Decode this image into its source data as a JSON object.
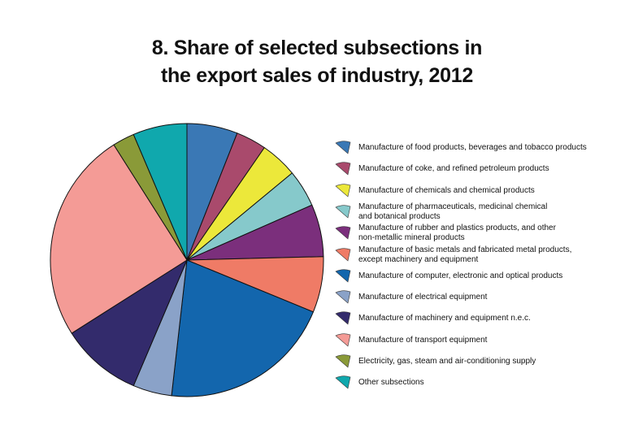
{
  "title_lines": [
    "8. Share of selected subsections in",
    "the export sales of industry, 2012"
  ],
  "chart_data": {
    "type": "pie",
    "title": "8. Share of selected subsections in the export sales of industry, 2012",
    "start": "12 o'clock, clockwise",
    "legend_position": "right",
    "slices": [
      {
        "label": "Manufacture of food products, beverages and tobacco products",
        "value": 6.0,
        "color": "#3a78b5"
      },
      {
        "label": "Manufacture of coke, and refined petroleum products",
        "value": 3.6,
        "color": "#a94a6c"
      },
      {
        "label": "Manufacture of chemicals and chemical products",
        "value": 4.4,
        "color": "#ece83a"
      },
      {
        "label": "Manufacture of pharmaceuticals, medicinal chemical\nand botanical products",
        "value": 4.4,
        "color": "#86c9cb"
      },
      {
        "label": "Manufacture of rubber and plastics products, and other\nnon-metallic mineral products",
        "value": 6.2,
        "color": "#7b2f7c"
      },
      {
        "label": "Manufacture of basic metals and fabricated metal products,\nexcept machinery and equipment",
        "value": 6.6,
        "color": "#ef7b66"
      },
      {
        "label": "Manufacture of computer, electronic  and optical products",
        "value": 20.6,
        "color": "#1366ad"
      },
      {
        "label": "Manufacture of electrical equipment",
        "value": 4.6,
        "color": "#8aa2c8"
      },
      {
        "label": "Manufacture of machinery and equipment n.e.c.",
        "value": 9.6,
        "color": "#332b6c"
      },
      {
        "label": "Manufacture of transport equipment",
        "value": 25.0,
        "color": "#f49b96"
      },
      {
        "label": "Electricity, gas, steam and air-conditioning supply",
        "value": 2.6,
        "color": "#8a9a38"
      },
      {
        "label": "Other subsections",
        "value": 6.4,
        "color": "#10a8ad"
      }
    ]
  }
}
